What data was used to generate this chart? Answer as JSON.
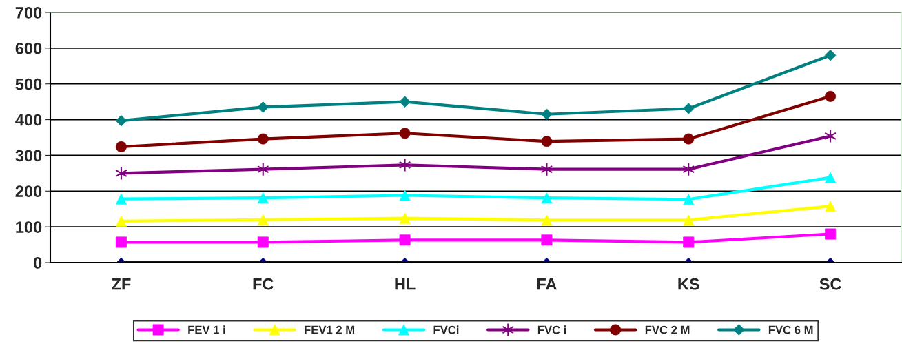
{
  "chart_data": {
    "type": "line",
    "categories": [
      "ZF",
      "FC",
      "HL",
      "FA",
      "KS",
      "SC"
    ],
    "series": [
      {
        "color": "#000080",
        "marker": "diamond",
        "values": [
          0,
          0,
          0,
          0,
          0,
          0
        ]
      },
      {
        "name": "FEV 1 i",
        "color": "#ff00ff",
        "marker": "square",
        "values": [
          57,
          57,
          63,
          63,
          57,
          80
        ]
      },
      {
        "name": "FEV1 2 M",
        "color": "#ffff00",
        "marker": "triangle",
        "values": [
          116,
          120,
          124,
          119,
          119,
          158
        ]
      },
      {
        "name": "FVCi",
        "color": "#00ffff",
        "marker": "triangle",
        "values": [
          178,
          181,
          188,
          181,
          177,
          238
        ]
      },
      {
        "name": "FVC i",
        "color": "#800080",
        "marker": "cross",
        "values": [
          250,
          261,
          273,
          261,
          261,
          354
        ]
      },
      {
        "name": "FVC 2 M",
        "color": "#800000",
        "marker": "circle",
        "values": [
          324,
          346,
          362,
          339,
          346,
          465
        ]
      },
      {
        "name": "FVC 6 M",
        "color": "#008080",
        "marker": "diamond",
        "values": [
          397,
          435,
          450,
          415,
          431,
          580
        ]
      }
    ],
    "ylim": [
      0,
      700
    ],
    "yticks": [
      0,
      100,
      200,
      300,
      400,
      500,
      600,
      700
    ],
    "grid": "y",
    "legend": "bottom"
  }
}
